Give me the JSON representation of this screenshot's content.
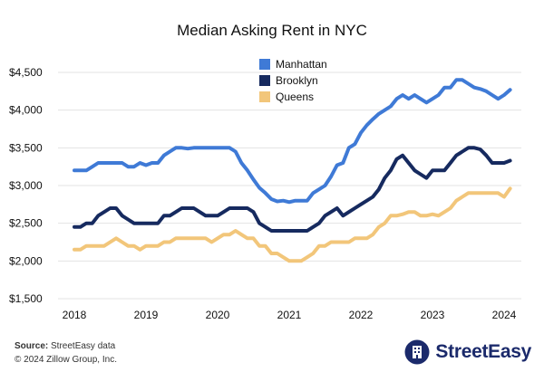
{
  "chart_data": {
    "type": "line",
    "title": "Median Asking Rent in NYC",
    "xlabel": "",
    "ylabel": "",
    "x_ticks": [
      "2018",
      "2019",
      "2020",
      "2021",
      "2022",
      "2023",
      "2024"
    ],
    "y_ticks": [
      "$1,500",
      "$2,000",
      "$2,500",
      "$3,000",
      "$3,500",
      "$4,000",
      "$4,500"
    ],
    "ylim": [
      1500,
      4500
    ],
    "xlim": [
      "2018-01",
      "2024-02"
    ],
    "grid": true,
    "legend_position": "top-center",
    "x": [
      "2018-01",
      "2018-02",
      "2018-03",
      "2018-04",
      "2018-05",
      "2018-06",
      "2018-07",
      "2018-08",
      "2018-09",
      "2018-10",
      "2018-11",
      "2018-12",
      "2019-01",
      "2019-02",
      "2019-03",
      "2019-04",
      "2019-05",
      "2019-06",
      "2019-07",
      "2019-08",
      "2019-09",
      "2019-10",
      "2019-11",
      "2019-12",
      "2020-01",
      "2020-02",
      "2020-03",
      "2020-04",
      "2020-05",
      "2020-06",
      "2020-07",
      "2020-08",
      "2020-09",
      "2020-10",
      "2020-11",
      "2020-12",
      "2021-01",
      "2021-02",
      "2021-03",
      "2021-04",
      "2021-05",
      "2021-06",
      "2021-07",
      "2021-08",
      "2021-09",
      "2021-10",
      "2021-11",
      "2021-12",
      "2022-01",
      "2022-02",
      "2022-03",
      "2022-04",
      "2022-05",
      "2022-06",
      "2022-07",
      "2022-08",
      "2022-09",
      "2022-10",
      "2022-11",
      "2022-12",
      "2023-01",
      "2023-02",
      "2023-03",
      "2023-04",
      "2023-05",
      "2023-06",
      "2023-07",
      "2023-08",
      "2023-09",
      "2023-10",
      "2023-11",
      "2023-12",
      "2024-01",
      "2024-02"
    ],
    "series": [
      {
        "name": "Manhattan",
        "color": "#3f7ad6",
        "values": [
          3200,
          3200,
          3200,
          3250,
          3300,
          3300,
          3300,
          3300,
          3300,
          3250,
          3250,
          3300,
          3270,
          3300,
          3300,
          3400,
          3450,
          3500,
          3500,
          3490,
          3500,
          3500,
          3500,
          3500,
          3500,
          3500,
          3500,
          3450,
          3300,
          3200,
          3080,
          2970,
          2900,
          2820,
          2790,
          2800,
          2780,
          2800,
          2800,
          2800,
          2900,
          2950,
          3000,
          3120,
          3270,
          3300,
          3500,
          3550,
          3700,
          3800,
          3880,
          3950,
          4000,
          4050,
          4150,
          4200,
          4150,
          4200,
          4150,
          4100,
          4150,
          4200,
          4300,
          4300,
          4400,
          4400,
          4350,
          4300,
          4280,
          4250,
          4200,
          4150,
          4200,
          4270
        ]
      },
      {
        "name": "Brooklyn",
        "color": "#162a5f",
        "values": [
          2450,
          2450,
          2500,
          2500,
          2600,
          2650,
          2700,
          2700,
          2600,
          2550,
          2500,
          2500,
          2500,
          2500,
          2500,
          2600,
          2600,
          2650,
          2700,
          2700,
          2700,
          2650,
          2600,
          2600,
          2600,
          2650,
          2700,
          2700,
          2700,
          2700,
          2650,
          2500,
          2450,
          2400,
          2400,
          2400,
          2400,
          2400,
          2400,
          2400,
          2450,
          2500,
          2600,
          2650,
          2700,
          2600,
          2650,
          2700,
          2750,
          2800,
          2850,
          2950,
          3100,
          3200,
          3350,
          3400,
          3300,
          3200,
          3150,
          3100,
          3200,
          3200,
          3200,
          3300,
          3400,
          3450,
          3500,
          3500,
          3480,
          3400,
          3300,
          3300,
          3300,
          3330
        ]
      },
      {
        "name": "Queens",
        "color": "#f2c67a",
        "values": [
          2150,
          2150,
          2200,
          2200,
          2200,
          2200,
          2250,
          2300,
          2250,
          2200,
          2200,
          2150,
          2200,
          2200,
          2200,
          2250,
          2250,
          2300,
          2300,
          2300,
          2300,
          2300,
          2300,
          2250,
          2300,
          2350,
          2350,
          2400,
          2350,
          2300,
          2300,
          2200,
          2200,
          2100,
          2100,
          2050,
          2000,
          2000,
          2000,
          2050,
          2100,
          2200,
          2200,
          2250,
          2250,
          2250,
          2250,
          2300,
          2300,
          2300,
          2350,
          2450,
          2500,
          2600,
          2600,
          2620,
          2650,
          2650,
          2600,
          2600,
          2620,
          2600,
          2650,
          2700,
          2800,
          2850,
          2900,
          2900,
          2900,
          2900,
          2900,
          2900,
          2850,
          2960
        ]
      }
    ]
  },
  "footer": {
    "source_label": "Source:",
    "source_text": " StreetEasy data",
    "copyright": "© 2024 Zillow Group, Inc."
  },
  "brand": {
    "name": "StreetEasy",
    "color": "#1b2a6b"
  }
}
